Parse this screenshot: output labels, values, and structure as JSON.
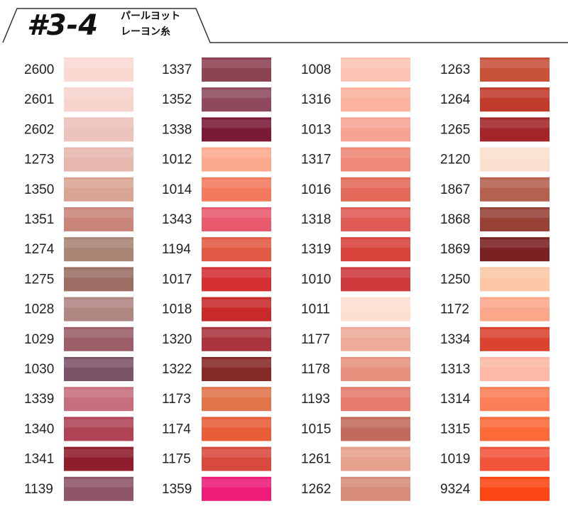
{
  "header": {
    "title": "#3-4",
    "subtitle": [
      "パールヨット",
      "レーヨン糸"
    ]
  },
  "columns": [
    [
      {
        "code": "2600",
        "color": "#fbd9d3"
      },
      {
        "code": "2601",
        "color": "#f6d3cc"
      },
      {
        "code": "2602",
        "color": "#ecc2bc"
      },
      {
        "code": "1273",
        "color": "#e6b8ad"
      },
      {
        "code": "1350",
        "color": "#d9a593"
      },
      {
        "code": "1351",
        "color": "#c98579"
      },
      {
        "code": "1274",
        "color": "#a98576"
      },
      {
        "code": "1275",
        "color": "#9d6e63"
      },
      {
        "code": "1028",
        "color": "#b08683"
      },
      {
        "code": "1029",
        "color": "#9c5f6a"
      },
      {
        "code": "1030",
        "color": "#7c5468"
      },
      {
        "code": "1339",
        "color": "#c66f7c"
      },
      {
        "code": "1340",
        "color": "#b04456"
      },
      {
        "code": "1341",
        "color": "#8f1d2c"
      },
      {
        "code": "1139",
        "color": "#8e5468"
      }
    ],
    [
      {
        "code": "1337",
        "color": "#8e4353"
      },
      {
        "code": "1352",
        "color": "#8e4a5c"
      },
      {
        "code": "1338",
        "color": "#7a1a35"
      },
      {
        "code": "1012",
        "color": "#fba98e"
      },
      {
        "code": "1014",
        "color": "#f37a5e"
      },
      {
        "code": "1343",
        "color": "#e95a6e"
      },
      {
        "code": "1194",
        "color": "#e25a45"
      },
      {
        "code": "1017",
        "color": "#d42f31"
      },
      {
        "code": "1018",
        "color": "#c82a2a"
      },
      {
        "code": "1320",
        "color": "#a9343d"
      },
      {
        "code": "1322",
        "color": "#862a28"
      },
      {
        "code": "1173",
        "color": "#e2744b"
      },
      {
        "code": "1174",
        "color": "#e85e38"
      },
      {
        "code": "1175",
        "color": "#d94a3e"
      },
      {
        "code": "1359",
        "color": "#ec1c78"
      }
    ],
    [
      {
        "code": "1008",
        "color": "#fdc4b5"
      },
      {
        "code": "1316",
        "color": "#fbb39d"
      },
      {
        "code": "1013",
        "color": "#f7a394"
      },
      {
        "code": "1317",
        "color": "#ef8876"
      },
      {
        "code": "1016",
        "color": "#e36a58"
      },
      {
        "code": "1318",
        "color": "#e05a56"
      },
      {
        "code": "1319",
        "color": "#d9433c"
      },
      {
        "code": "1010",
        "color": "#cf3a3d"
      },
      {
        "code": "1011",
        "color": "#fde0d2"
      },
      {
        "code": "1177",
        "color": "#efab99"
      },
      {
        "code": "1178",
        "color": "#e8917e"
      },
      {
        "code": "1193",
        "color": "#e67a6d"
      },
      {
        "code": "1015",
        "color": "#c26b5d"
      },
      {
        "code": "1261",
        "color": "#e5a18b"
      },
      {
        "code": "1262",
        "color": "#d68c78"
      }
    ],
    [
      {
        "code": "1263",
        "color": "#c8513a"
      },
      {
        "code": "1264",
        "color": "#c03b2c"
      },
      {
        "code": "1265",
        "color": "#a3262a"
      },
      {
        "code": "2120",
        "color": "#fbe0cf"
      },
      {
        "code": "1867",
        "color": "#b56150"
      },
      {
        "code": "1868",
        "color": "#974137"
      },
      {
        "code": "1869",
        "color": "#7a2222"
      },
      {
        "code": "1250",
        "color": "#fcc8a6"
      },
      {
        "code": "1172",
        "color": "#fba88a"
      },
      {
        "code": "1334",
        "color": "#db4330"
      },
      {
        "code": "1313",
        "color": "#fdb9a6"
      },
      {
        "code": "1314",
        "color": "#fb7e57"
      },
      {
        "code": "1315",
        "color": "#fb6a38"
      },
      {
        "code": "1019",
        "color": "#f2553c"
      },
      {
        "code": "9324",
        "color": "#fa4612"
      }
    ]
  ]
}
